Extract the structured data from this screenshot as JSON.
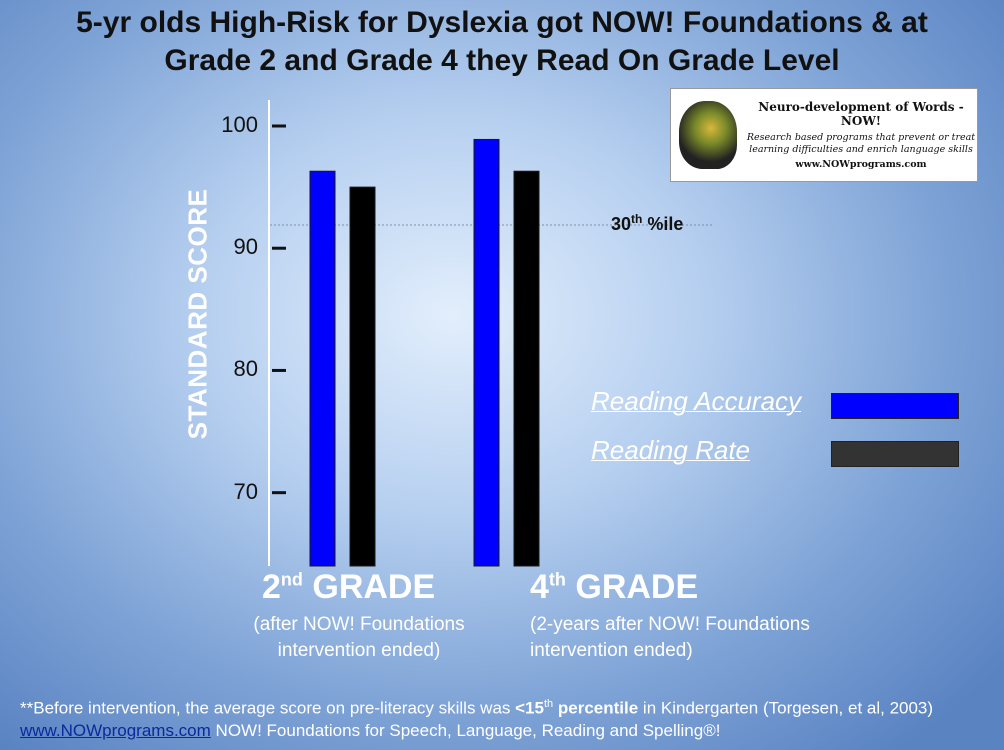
{
  "title": {
    "line1": "5-yr olds High-Risk for Dyslexia got NOW! Foundations & at",
    "line2": "Grade 2 and Grade 4 they Read On Grade Level"
  },
  "logo": {
    "name": "Neuro-development of Words - NOW!",
    "tagline": "Research based programs that prevent or treat learning difficulties and enrich language skills",
    "url": "www.NOWprograms.com"
  },
  "chart_data": {
    "type": "bar",
    "categories": [
      "2nd GRADE",
      "4th GRADE"
    ],
    "category_titles": [
      {
        "num": "2",
        "sup": "nd",
        "word": "GRADE"
      },
      {
        "num": "4",
        "sup": "th",
        "word": "GRADE"
      }
    ],
    "category_subtitles": [
      "(after NOW! Foundations intervention ended)",
      "(2-years after NOW! Foundations intervention ended)"
    ],
    "series": [
      {
        "name": "Reading Accuracy",
        "values": [
          96.3,
          98.9
        ],
        "color": "#0000ff"
      },
      {
        "name": "Reading Rate",
        "values": [
          95.0,
          96.3
        ],
        "color": "#000000"
      }
    ],
    "ylabel": "STANDARD SCORE",
    "ylim": [
      64,
      100
    ],
    "yticks": [
      100,
      90,
      80,
      70
    ],
    "reference_line": {
      "value": 91.9,
      "label_base": "30",
      "label_sup": "th",
      "label_rest": " %ile"
    },
    "legend_position": "right"
  },
  "footnote": {
    "p1": "**Before intervention, the average score on pre-literacy skills was ",
    "p2": "<15",
    "p3": "th",
    "p4": " percentile",
    "p5": " in Kindergarten (Torgesen, et al, 2003) ",
    "link": "www.NOWprograms.com",
    "p6": "  NOW! Foundations for Speech, Language, Reading and Spelling®!"
  }
}
